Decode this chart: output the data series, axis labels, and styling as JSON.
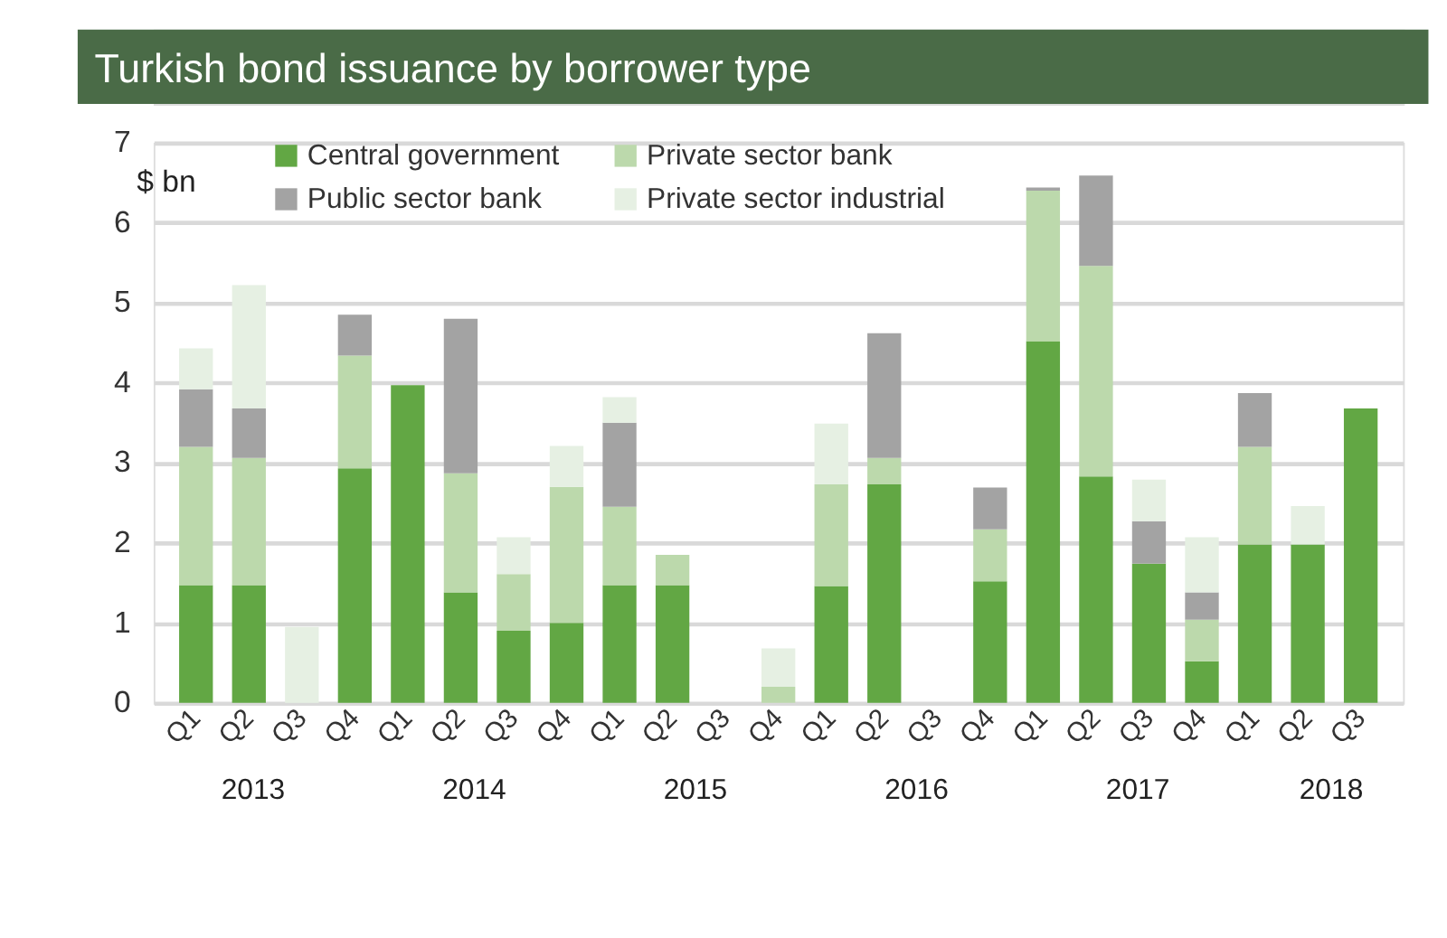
{
  "chart_data": {
    "type": "bar",
    "stacked": true,
    "title": "Turkish bond issuance by borrower type",
    "ylabel": "$ bn",
    "categories": [
      "Q1",
      "Q2",
      "Q3",
      "Q4",
      "Q1",
      "Q2",
      "Q3",
      "Q4",
      "Q1",
      "Q2",
      "Q3",
      "Q4",
      "Q1",
      "Q2",
      "Q3",
      "Q4",
      "Q1",
      "Q2",
      "Q3",
      "Q4",
      "Q1",
      "Q2",
      "Q3"
    ],
    "annotations": [
      "2013",
      "2014",
      "2015",
      "2016",
      "2017",
      "2018"
    ],
    "series": [
      {
        "name": "Central government",
        "color": "#62a744",
        "values": [
          1.47,
          1.47,
          null,
          2.93,
          3.97,
          1.38,
          0.9,
          1.0,
          1.47,
          1.47,
          null,
          null,
          1.46,
          2.73,
          null,
          1.52,
          4.52,
          2.83,
          1.74,
          0.52,
          1.98,
          1.98,
          3.68
        ]
      },
      {
        "name": "Private sector bank",
        "color": "#bcd9ac",
        "values": [
          1.73,
          1.59,
          null,
          1.41,
          null,
          1.49,
          0.71,
          1.7,
          0.98,
          0.38,
          null,
          0.2,
          1.27,
          0.33,
          null,
          0.65,
          1.88,
          2.63,
          null,
          0.52,
          1.22,
          null,
          null
        ]
      },
      {
        "name": "Public sector bank",
        "color": "#a3a3a3",
        "values": [
          0.72,
          0.62,
          null,
          0.51,
          null,
          1.93,
          null,
          null,
          1.05,
          null,
          null,
          null,
          null,
          1.56,
          null,
          0.52,
          0.04,
          1.13,
          0.53,
          0.34,
          0.67,
          null,
          null
        ]
      },
      {
        "name": "Private sector industrial",
        "color": "#e6f0e3",
        "values": [
          0.51,
          1.54,
          0.95,
          null,
          null,
          null,
          0.46,
          0.51,
          0.32,
          null,
          null,
          0.48,
          0.76,
          null,
          null,
          null,
          null,
          null,
          0.52,
          0.69,
          null,
          0.48,
          null
        ]
      }
    ],
    "ylim": [
      0,
      7
    ],
    "yticks": [
      0,
      1,
      2,
      3,
      4,
      5,
      6,
      7
    ],
    "grid": "y",
    "legend": "top"
  }
}
